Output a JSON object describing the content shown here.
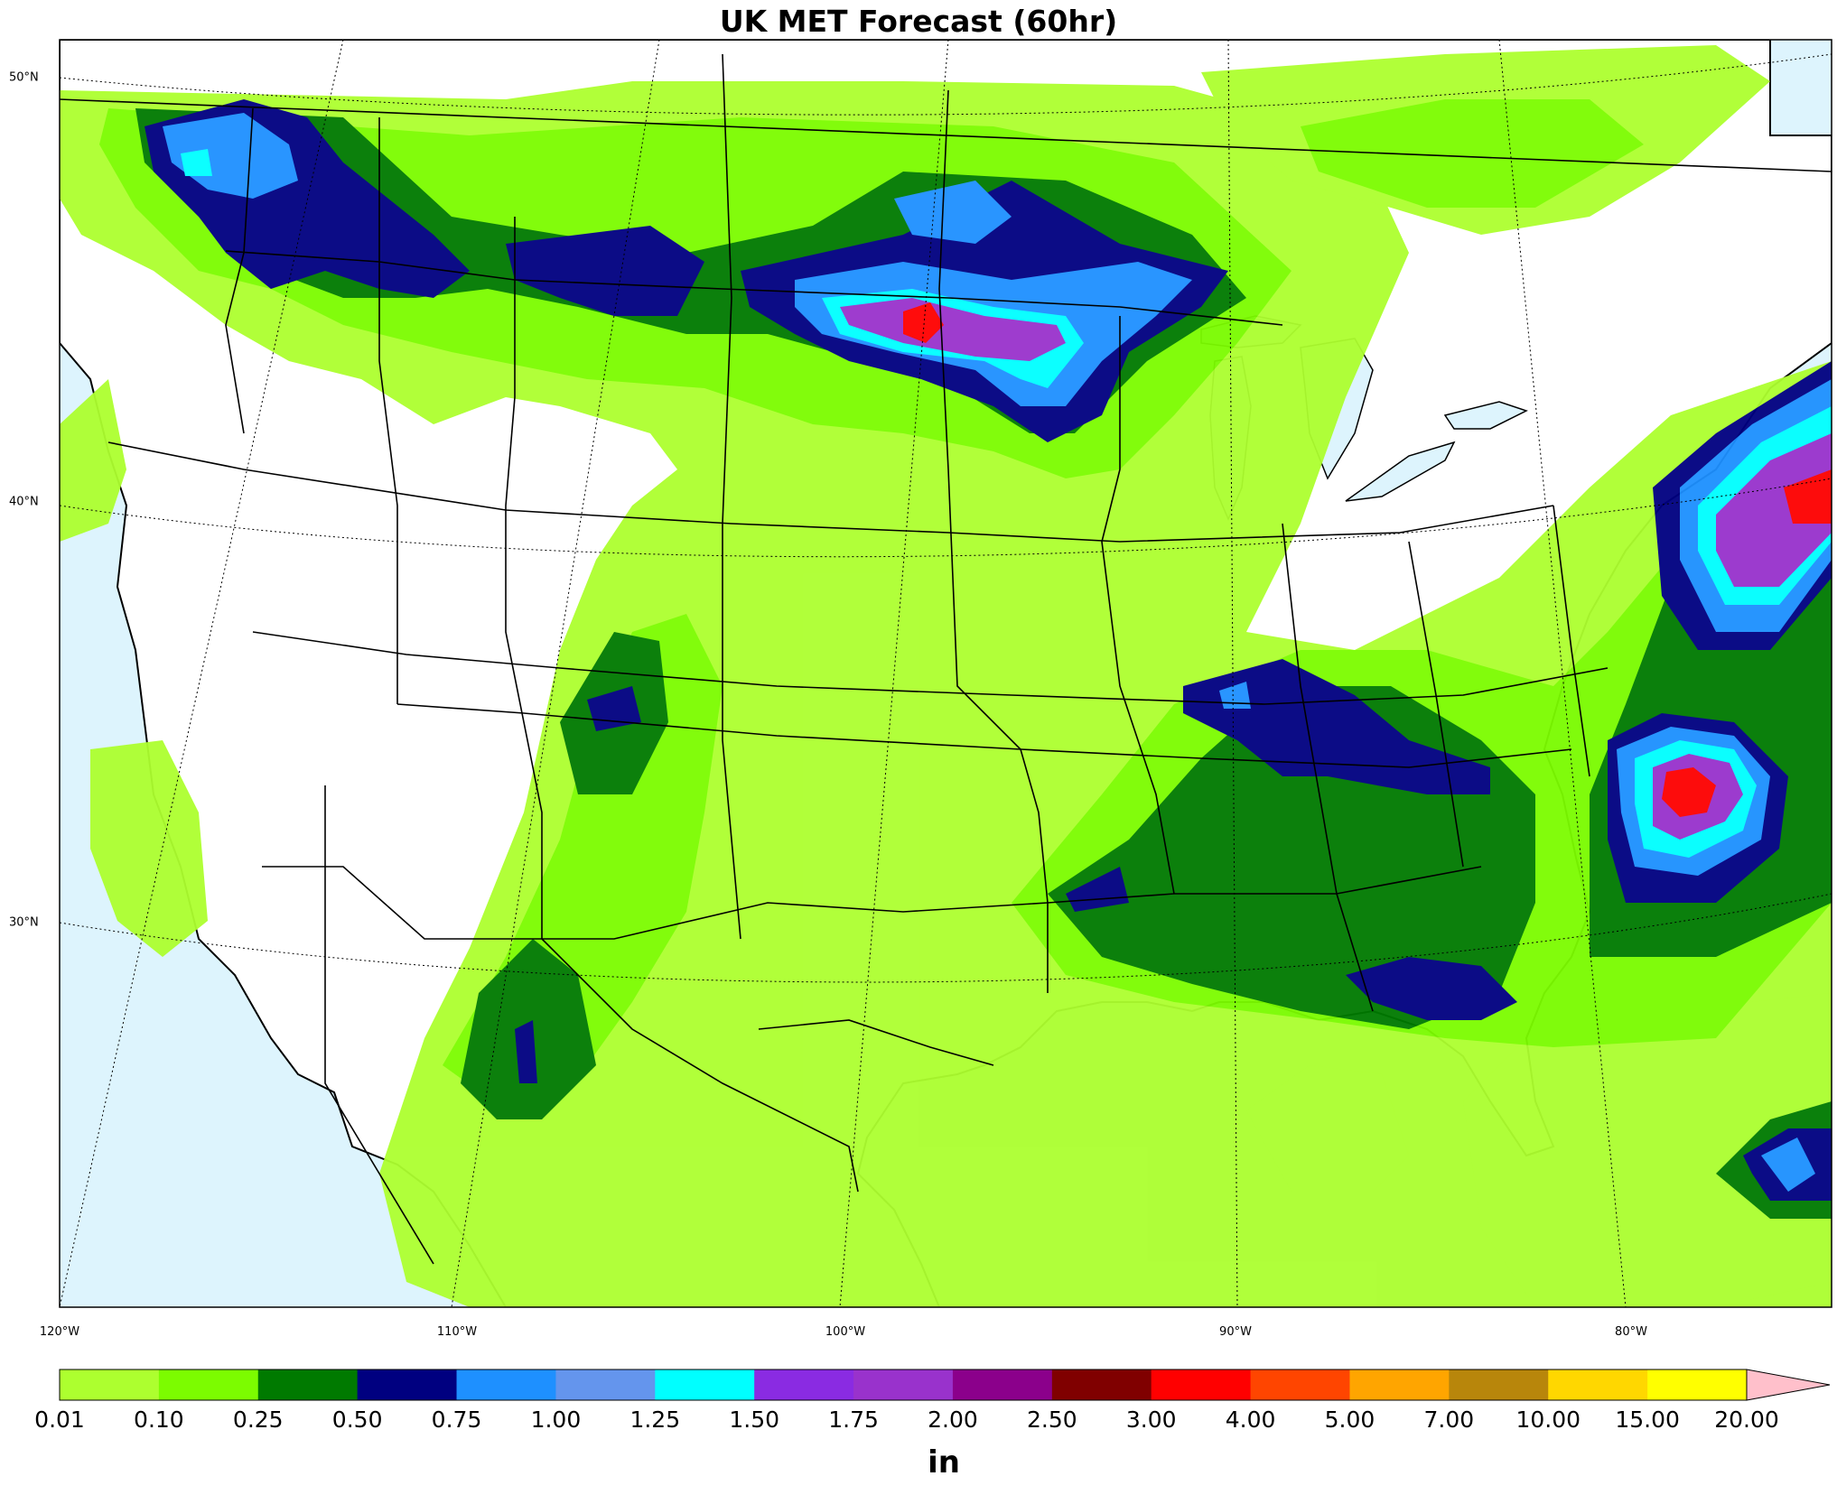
{
  "title": "UK MET Forecast (60hr)",
  "lat_labels": [
    "50°N",
    "40°N",
    "30°N"
  ],
  "lon_labels": [
    "120°W",
    "110°W",
    "100°W",
    "90°W",
    "80°W"
  ],
  "colorbar": {
    "unit": "in",
    "ticks": [
      "0.01",
      "0.10",
      "0.25",
      "0.50",
      "0.75",
      "1.00",
      "1.25",
      "1.50",
      "1.75",
      "2.00",
      "2.50",
      "3.00",
      "4.00",
      "5.00",
      "7.00",
      "10.00",
      "15.00",
      "20.00"
    ],
    "colors": [
      "#adff2f",
      "#7cfc00",
      "#007a00",
      "#000080",
      "#1e90ff",
      "#6495ed",
      "#00ffff",
      "#8a2be2",
      "#9932cc",
      "#8b008b",
      "#800000",
      "#ff0000",
      "#ff4500",
      "#ffa500",
      "#b8860b",
      "#ffd700",
      "#ffff00"
    ],
    "extend_color": "#ffc0cb"
  },
  "map_colors": {
    "ocean": "#ddf4fd",
    "land": "#ffffff",
    "borders": "#000000"
  }
}
